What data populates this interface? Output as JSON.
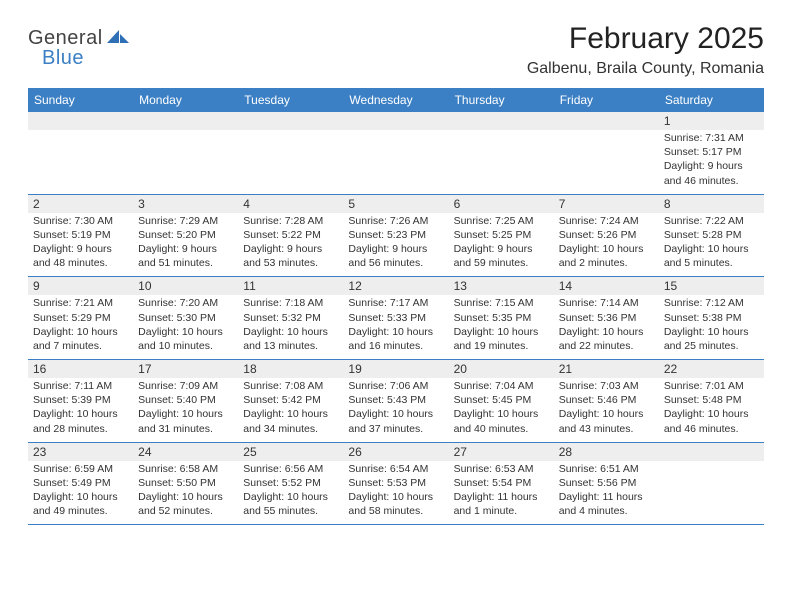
{
  "brand": {
    "general": "General",
    "blue": "Blue"
  },
  "title": "February 2025",
  "location": "Galbenu, Braila County, Romania",
  "colors": {
    "header_bg": "#3b7fc4",
    "header_text": "#ffffff",
    "daynum_bg": "#eeeeee",
    "border": "#3b7fc4",
    "text": "#333333"
  },
  "weekdays": [
    "Sunday",
    "Monday",
    "Tuesday",
    "Wednesday",
    "Thursday",
    "Friday",
    "Saturday"
  ],
  "weeks": [
    [
      {
        "n": "",
        "lines": []
      },
      {
        "n": "",
        "lines": []
      },
      {
        "n": "",
        "lines": []
      },
      {
        "n": "",
        "lines": []
      },
      {
        "n": "",
        "lines": []
      },
      {
        "n": "",
        "lines": []
      },
      {
        "n": "1",
        "lines": [
          "Sunrise: 7:31 AM",
          "Sunset: 5:17 PM",
          "Daylight: 9 hours and 46 minutes."
        ]
      }
    ],
    [
      {
        "n": "2",
        "lines": [
          "Sunrise: 7:30 AM",
          "Sunset: 5:19 PM",
          "Daylight: 9 hours and 48 minutes."
        ]
      },
      {
        "n": "3",
        "lines": [
          "Sunrise: 7:29 AM",
          "Sunset: 5:20 PM",
          "Daylight: 9 hours and 51 minutes."
        ]
      },
      {
        "n": "4",
        "lines": [
          "Sunrise: 7:28 AM",
          "Sunset: 5:22 PM",
          "Daylight: 9 hours and 53 minutes."
        ]
      },
      {
        "n": "5",
        "lines": [
          "Sunrise: 7:26 AM",
          "Sunset: 5:23 PM",
          "Daylight: 9 hours and 56 minutes."
        ]
      },
      {
        "n": "6",
        "lines": [
          "Sunrise: 7:25 AM",
          "Sunset: 5:25 PM",
          "Daylight: 9 hours and 59 minutes."
        ]
      },
      {
        "n": "7",
        "lines": [
          "Sunrise: 7:24 AM",
          "Sunset: 5:26 PM",
          "Daylight: 10 hours and 2 minutes."
        ]
      },
      {
        "n": "8",
        "lines": [
          "Sunrise: 7:22 AM",
          "Sunset: 5:28 PM",
          "Daylight: 10 hours and 5 minutes."
        ]
      }
    ],
    [
      {
        "n": "9",
        "lines": [
          "Sunrise: 7:21 AM",
          "Sunset: 5:29 PM",
          "Daylight: 10 hours and 7 minutes."
        ]
      },
      {
        "n": "10",
        "lines": [
          "Sunrise: 7:20 AM",
          "Sunset: 5:30 PM",
          "Daylight: 10 hours and 10 minutes."
        ]
      },
      {
        "n": "11",
        "lines": [
          "Sunrise: 7:18 AM",
          "Sunset: 5:32 PM",
          "Daylight: 10 hours and 13 minutes."
        ]
      },
      {
        "n": "12",
        "lines": [
          "Sunrise: 7:17 AM",
          "Sunset: 5:33 PM",
          "Daylight: 10 hours and 16 minutes."
        ]
      },
      {
        "n": "13",
        "lines": [
          "Sunrise: 7:15 AM",
          "Sunset: 5:35 PM",
          "Daylight: 10 hours and 19 minutes."
        ]
      },
      {
        "n": "14",
        "lines": [
          "Sunrise: 7:14 AM",
          "Sunset: 5:36 PM",
          "Daylight: 10 hours and 22 minutes."
        ]
      },
      {
        "n": "15",
        "lines": [
          "Sunrise: 7:12 AM",
          "Sunset: 5:38 PM",
          "Daylight: 10 hours and 25 minutes."
        ]
      }
    ],
    [
      {
        "n": "16",
        "lines": [
          "Sunrise: 7:11 AM",
          "Sunset: 5:39 PM",
          "Daylight: 10 hours and 28 minutes."
        ]
      },
      {
        "n": "17",
        "lines": [
          "Sunrise: 7:09 AM",
          "Sunset: 5:40 PM",
          "Daylight: 10 hours and 31 minutes."
        ]
      },
      {
        "n": "18",
        "lines": [
          "Sunrise: 7:08 AM",
          "Sunset: 5:42 PM",
          "Daylight: 10 hours and 34 minutes."
        ]
      },
      {
        "n": "19",
        "lines": [
          "Sunrise: 7:06 AM",
          "Sunset: 5:43 PM",
          "Daylight: 10 hours and 37 minutes."
        ]
      },
      {
        "n": "20",
        "lines": [
          "Sunrise: 7:04 AM",
          "Sunset: 5:45 PM",
          "Daylight: 10 hours and 40 minutes."
        ]
      },
      {
        "n": "21",
        "lines": [
          "Sunrise: 7:03 AM",
          "Sunset: 5:46 PM",
          "Daylight: 10 hours and 43 minutes."
        ]
      },
      {
        "n": "22",
        "lines": [
          "Sunrise: 7:01 AM",
          "Sunset: 5:48 PM",
          "Daylight: 10 hours and 46 minutes."
        ]
      }
    ],
    [
      {
        "n": "23",
        "lines": [
          "Sunrise: 6:59 AM",
          "Sunset: 5:49 PM",
          "Daylight: 10 hours and 49 minutes."
        ]
      },
      {
        "n": "24",
        "lines": [
          "Sunrise: 6:58 AM",
          "Sunset: 5:50 PM",
          "Daylight: 10 hours and 52 minutes."
        ]
      },
      {
        "n": "25",
        "lines": [
          "Sunrise: 6:56 AM",
          "Sunset: 5:52 PM",
          "Daylight: 10 hours and 55 minutes."
        ]
      },
      {
        "n": "26",
        "lines": [
          "Sunrise: 6:54 AM",
          "Sunset: 5:53 PM",
          "Daylight: 10 hours and 58 minutes."
        ]
      },
      {
        "n": "27",
        "lines": [
          "Sunrise: 6:53 AM",
          "Sunset: 5:54 PM",
          "Daylight: 11 hours and 1 minute."
        ]
      },
      {
        "n": "28",
        "lines": [
          "Sunrise: 6:51 AM",
          "Sunset: 5:56 PM",
          "Daylight: 11 hours and 4 minutes."
        ]
      },
      {
        "n": "",
        "lines": []
      }
    ]
  ]
}
